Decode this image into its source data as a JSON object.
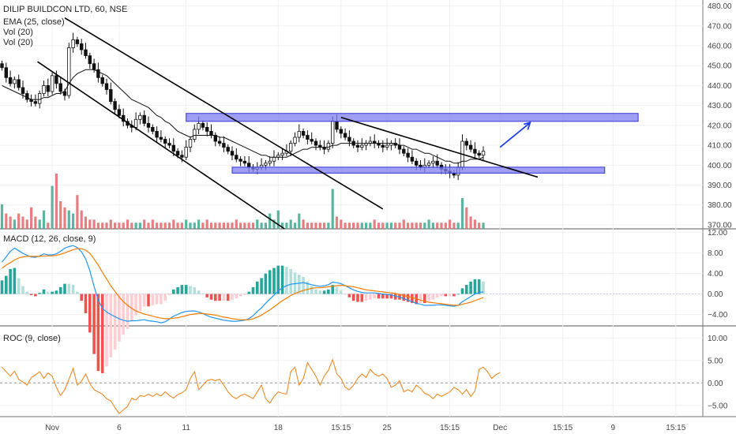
{
  "chart_data": [
    {
      "type": "candlestick",
      "title": "DILIP BUILDCON LTD, 60, NSE",
      "indicators": [
        "EMA (25, close)",
        "Vol (20)",
        "Vol (20)"
      ],
      "y_ticks": [
        370,
        380,
        390,
        400,
        410,
        420,
        430,
        440,
        450,
        460,
        470,
        480
      ],
      "ylim": [
        368,
        483
      ],
      "x_tick_labels": [
        "Nov",
        "6",
        "11",
        "18",
        "15:15",
        "25",
        "15:15",
        "Dec",
        "15:15",
        "9",
        "15:15"
      ],
      "x_tick_index": [
        12,
        28,
        44,
        66,
        81,
        92,
        107,
        119,
        134,
        146,
        161
      ],
      "closes": [
        449,
        444,
        441,
        443,
        439,
        436,
        433,
        432,
        431,
        436,
        440,
        437,
        445,
        441,
        437,
        435,
        459,
        463,
        461,
        458,
        455,
        451,
        448,
        444,
        441,
        438,
        432,
        428,
        425,
        422,
        420,
        419,
        423,
        425,
        421,
        419,
        417,
        414,
        413,
        411,
        410,
        407,
        405,
        404,
        409,
        413,
        418,
        421,
        419,
        417,
        415,
        412,
        411,
        409,
        407,
        405,
        403,
        402,
        401,
        399,
        398,
        399,
        400,
        401,
        402,
        404,
        405,
        406,
        407,
        411,
        414,
        417,
        415,
        413,
        412,
        410,
        409,
        408,
        411,
        422,
        418,
        416,
        414,
        412,
        410,
        409,
        410,
        411,
        412,
        411,
        410,
        409,
        410,
        411,
        410,
        408,
        406,
        404,
        402,
        400,
        399,
        400,
        401,
        402,
        400,
        398,
        397,
        396,
        395,
        399,
        412,
        410,
        408,
        406,
        405,
        407
      ],
      "ema": [
        440,
        439,
        438,
        437,
        436,
        435,
        434,
        433,
        433,
        433,
        434,
        434,
        435,
        436,
        436,
        437,
        441,
        444,
        446,
        447,
        448,
        448,
        448,
        447,
        446,
        445,
        443,
        441,
        439,
        437,
        435,
        433,
        432,
        431,
        430,
        429,
        427,
        425,
        424,
        422,
        421,
        419,
        417,
        416,
        415,
        414,
        415,
        415,
        415,
        415,
        415,
        415,
        414,
        414,
        413,
        412,
        411,
        410,
        409,
        408,
        407,
        406,
        405,
        405,
        404,
        404,
        404,
        404,
        404,
        405,
        406,
        407,
        408,
        408,
        409,
        409,
        409,
        409,
        409,
        410,
        410,
        411,
        411,
        411,
        411,
        411,
        411,
        411,
        411,
        411,
        411,
        411,
        411,
        411,
        411,
        410,
        410,
        409,
        408,
        408,
        407,
        406,
        406,
        405,
        404,
        403,
        402,
        402,
        401,
        401,
        402,
        402,
        403,
        403,
        403,
        404
      ],
      "volume": [
        8,
        5,
        4,
        3,
        5,
        4,
        3,
        7,
        4,
        3,
        6,
        2,
        14,
        18,
        9,
        7,
        6,
        5,
        11,
        6,
        4,
        3,
        3,
        2,
        2,
        2,
        3,
        2,
        2,
        2,
        3,
        2,
        2,
        2,
        3,
        2,
        3,
        2,
        2,
        2,
        2,
        3,
        2,
        2,
        3,
        2,
        2,
        3,
        2,
        3,
        2,
        2,
        2,
        2,
        2,
        2,
        3,
        2,
        2,
        2,
        2,
        3,
        2,
        2,
        5,
        3,
        6,
        2,
        2,
        3,
        2,
        5,
        3,
        2,
        2,
        2,
        2,
        2,
        2,
        13,
        4,
        3,
        2,
        2,
        2,
        2,
        2,
        2,
        2,
        3,
        2,
        2,
        2,
        2,
        2,
        2,
        3,
        2,
        2,
        2,
        2,
        2,
        3,
        2,
        2,
        2,
        2,
        3,
        2,
        2,
        10,
        7,
        4,
        3,
        2,
        2
      ],
      "drawings": {
        "resistance_zone": [
          422,
          426
        ],
        "support_zone": [
          396,
          399
        ]
      }
    },
    {
      "type": "histogram+line",
      "title": "MACD (12, 26, close, 9)",
      "y_ticks": [
        -4.0,
        0.0,
        4.0,
        8.0,
        12.0
      ],
      "y_tick_labels": [
        "−4.00",
        "0.00",
        "4.00",
        "8.00",
        "12.00"
      ],
      "ylim": [
        -6.2,
        12.5
      ],
      "macd": [
        6.2,
        7.2,
        8.3,
        8.9,
        8.4,
        7.9,
        7.5,
        7.2,
        7.1,
        7.4,
        7.8,
        7.6,
        7.6,
        7.8,
        8.3,
        8.9,
        9.2,
        9.4,
        9.0,
        8.2,
        6.8,
        4.5,
        1.5,
        -1.2,
        -2.8,
        -3.5,
        -4.0,
        -4.4,
        -4.8,
        -5.1,
        -5.3,
        -5.2,
        -5.2,
        -5.1,
        -5.0,
        -5.2,
        -5.3,
        -5.4,
        -5.6,
        -5.4,
        -4.9,
        -4.3,
        -4.0,
        -3.6,
        -3.4,
        -3.3,
        -3.3,
        -3.5,
        -3.8,
        -4.2,
        -4.5,
        -4.7,
        -4.9,
        -5.1,
        -5.2,
        -5.3,
        -5.3,
        -5.2,
        -5.1,
        -4.8,
        -4.2,
        -3.4,
        -2.7,
        -1.8,
        -1.0,
        -0.2,
        0.6,
        1.2,
        1.6,
        1.9,
        2.0,
        2.1,
        2.2,
        2.0,
        1.8,
        1.6,
        1.5,
        1.6,
        1.8,
        2.3,
        2.2,
        2.0,
        1.6,
        1.2,
        0.8,
        0.5,
        0.3,
        0.2,
        0.2,
        0.2,
        0.1,
        0.0,
        -0.1,
        -0.2,
        -0.4,
        -0.6,
        -0.9,
        -1.2,
        -1.5,
        -1.8,
        -2.0,
        -2.2,
        -2.2,
        -2.2,
        -2.1,
        -2.1,
        -2.2,
        -2.3,
        -2.4,
        -2.2,
        -1.5,
        -1.0,
        -0.5,
        0.0,
        0.3,
        0.4
      ],
      "signal": [
        5.0,
        5.6,
        6.1,
        6.6,
        7.0,
        7.2,
        7.3,
        7.3,
        7.3,
        7.3,
        7.4,
        7.4,
        7.4,
        7.5,
        7.7,
        8.0,
        8.3,
        8.6,
        8.8,
        8.8,
        8.5,
        7.9,
        6.8,
        5.6,
        4.2,
        2.9,
        1.6,
        0.5,
        -0.6,
        -1.5,
        -2.2,
        -2.8,
        -3.3,
        -3.6,
        -3.9,
        -4.1,
        -4.3,
        -4.5,
        -4.7,
        -4.8,
        -4.8,
        -4.7,
        -4.6,
        -4.4,
        -4.2,
        -4.0,
        -3.9,
        -3.8,
        -3.8,
        -3.9,
        -4.0,
        -4.1,
        -4.3,
        -4.5,
        -4.6,
        -4.8,
        -4.9,
        -5.0,
        -5.0,
        -5.0,
        -4.8,
        -4.5,
        -4.1,
        -3.6,
        -3.1,
        -2.5,
        -1.9,
        -1.3,
        -0.8,
        -0.3,
        0.1,
        0.4,
        0.7,
        0.9,
        1.1,
        1.2,
        1.2,
        1.3,
        1.4,
        1.5,
        1.6,
        1.7,
        1.6,
        1.5,
        1.4,
        1.2,
        1.0,
        0.8,
        0.7,
        0.6,
        0.5,
        0.4,
        0.3,
        0.2,
        0.1,
        -0.1,
        -0.3,
        -0.5,
        -0.7,
        -0.9,
        -1.2,
        -1.4,
        -1.6,
        -1.7,
        -1.8,
        -1.9,
        -2.0,
        -2.1,
        -2.2,
        -2.2,
        -2.0,
        -1.8,
        -1.6,
        -1.3,
        -1.0,
        -0.7
      ]
    },
    {
      "type": "line",
      "title": "ROC (9, close)",
      "y_ticks": [
        -5.0,
        0.0,
        5.0,
        10.0
      ],
      "y_tick_labels": [
        "−5.00",
        "0.00",
        "5.00",
        "10.00"
      ],
      "ylim": [
        -7.5,
        12.5
      ],
      "roc": [
        3.5,
        2.5,
        1.5,
        2.6,
        0.8,
        0.2,
        -0.5,
        1.2,
        1.8,
        2.5,
        1.0,
        2.2,
        1.5,
        -1.0,
        -2.8,
        -1.5,
        0.8,
        3.2,
        -0.5,
        0.4,
        2.0,
        -0.2,
        -1.5,
        -2.0,
        -2.5,
        -3.5,
        -4.0,
        -5.5,
        -6.8,
        -6.0,
        -5.2,
        -3.4,
        -3.8,
        -2.8,
        -3.0,
        -2.5,
        -3.0,
        -2.4,
        -2.9,
        -2.0,
        -2.8,
        -3.4,
        -2.6,
        -2.2,
        -1.5,
        1.0,
        2.5,
        -1.5,
        -0.5,
        0.5,
        0.8,
        0.5,
        0.8,
        -0.5,
        -2.0,
        -3.0,
        -3.5,
        -2.8,
        -2.5,
        -3.0,
        -3.5,
        -2.0,
        -0.5,
        -3.5,
        -4.5,
        -3.0,
        -2.0,
        -2.3,
        -2.5,
        2.5,
        3.5,
        -0.5,
        1.0,
        4.5,
        3.0,
        1.5,
        -0.5,
        1.5,
        2.8,
        5.2,
        2.0,
        1.0,
        -1.0,
        -1.5,
        -0.5,
        1.0,
        2.0,
        1.2,
        3.0,
        2.0,
        1.5,
        2.0,
        1.0,
        -1.0,
        -0.5,
        0.5,
        -2.0,
        -1.5,
        -2.0,
        -0.5,
        -1.2,
        -2.3,
        -2.7,
        -3.5,
        -2.5,
        -3.0,
        -2.5,
        -2.0,
        -1.0,
        -1.5,
        -2.5,
        -1.5,
        -3.0,
        -1.8,
        3.0,
        3.5,
        2.5,
        1.0,
        1.8,
        2.3
      ]
    }
  ]
}
